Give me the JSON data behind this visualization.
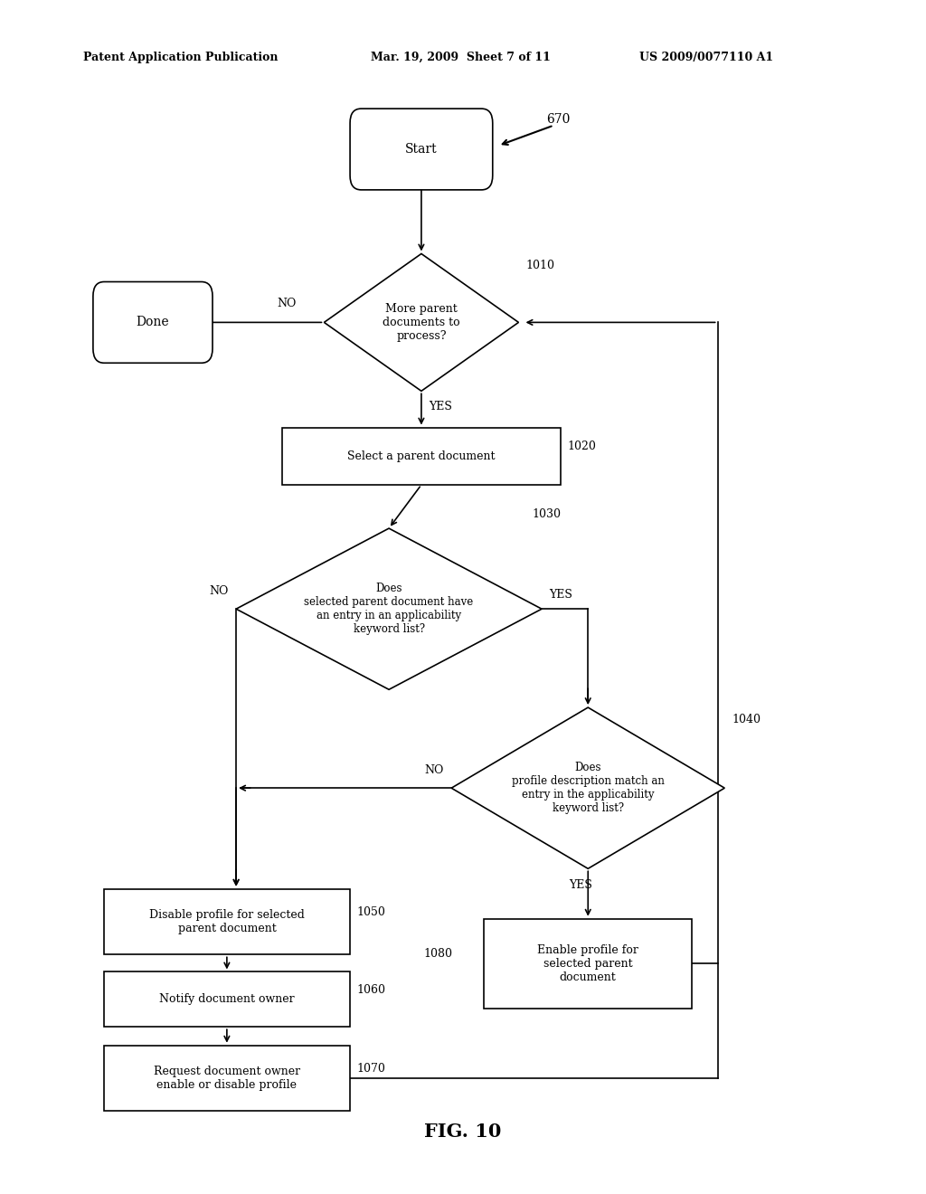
{
  "bg_color": "#ffffff",
  "header_left": "Patent Application Publication",
  "header_center": "Mar. 19, 2009  Sheet 7 of 11",
  "header_right": "US 2009/0077110 A1",
  "figure_label": "FIG. 10",
  "label_670": "670"
}
